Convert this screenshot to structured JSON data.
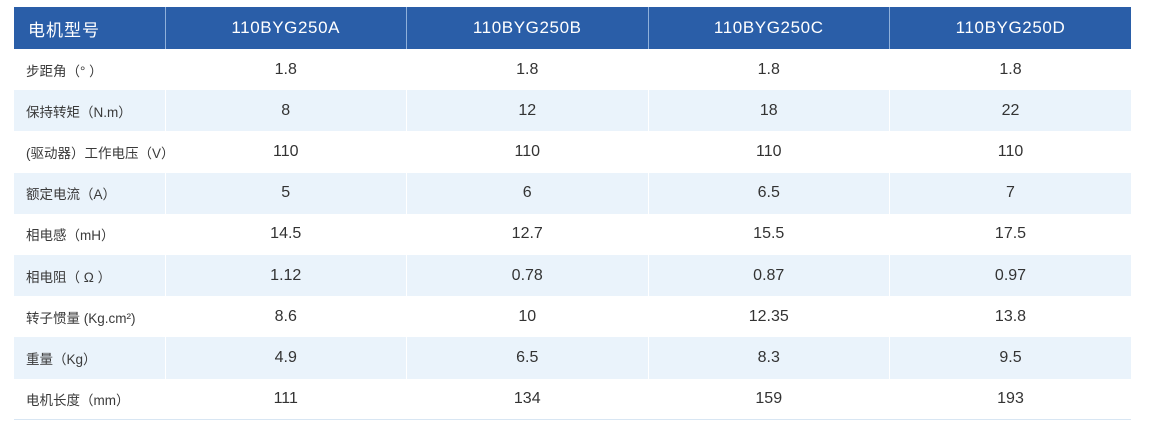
{
  "table": {
    "header": {
      "label": "电机型号",
      "models": [
        "110BYG250A",
        "110BYG250B",
        "110BYG250C",
        "110BYG250D"
      ]
    },
    "rows": [
      {
        "label": "步距角（° ）",
        "values": [
          "1.8",
          "1.8",
          "1.8",
          "1.8"
        ]
      },
      {
        "label": "保持转矩（N.m）",
        "values": [
          "8",
          "12",
          "18",
          "22"
        ]
      },
      {
        "label": "(驱动器）工作电压（V）",
        "values": [
          "110",
          "110",
          "110",
          "110"
        ]
      },
      {
        "label": "额定电流（A）",
        "values": [
          "5",
          "6",
          "6.5",
          "7"
        ]
      },
      {
        "label": "相电感（mH）",
        "values": [
          "14.5",
          "12.7",
          "15.5",
          "17.5"
        ]
      },
      {
        "label": "相电阻（ Ω ）",
        "values": [
          "1.12",
          "0.78",
          "0.87",
          "0.97"
        ]
      },
      {
        "label": "转子惯量 (Kg.cm²)",
        "values": [
          "8.6",
          "10",
          "12.35",
          "13.8"
        ]
      },
      {
        "label": "重量（Kg）",
        "values": [
          "4.9",
          "6.5",
          "8.3",
          "9.5"
        ]
      },
      {
        "label": "电机长度（mm）",
        "values": [
          "111",
          "134",
          "159",
          "193"
        ]
      }
    ]
  },
  "colors": {
    "header_bg": "#2a5ea8",
    "row_alt_bg": "#eaf3fb",
    "text": "#333333"
  }
}
